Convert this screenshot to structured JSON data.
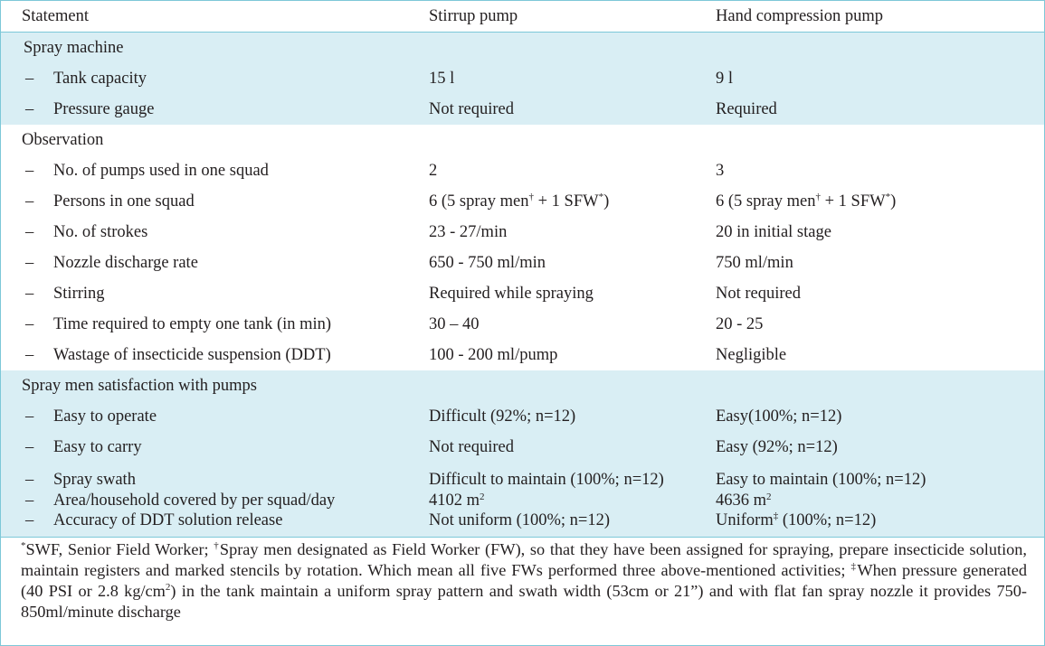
{
  "header": {
    "col1": "Statement",
    "col2": "Stirrup pump",
    "col3": "Hand compression pump"
  },
  "sections": [
    {
      "title": "Spray machine",
      "rows": [
        {
          "dash": "–",
          "label": "Tank capacity",
          "stirrup": "15 l",
          "hand": "9 l"
        },
        {
          "dash": "–",
          "label": "Pressure gauge",
          "stirrup": "Not required",
          "hand": "Required"
        }
      ]
    },
    {
      "title": "Observation",
      "rows": [
        {
          "dash": "–",
          "label": "No. of pumps used in one squad",
          "stirrup": "2",
          "hand": "3"
        },
        {
          "dash": "–",
          "label": "Persons in one squad",
          "stirrup": "6 (5 spray men† + 1 SFW*)",
          "hand": "6 (5 spray men† + 1 SFW*)"
        },
        {
          "dash": "–",
          "label": "No. of strokes",
          "stirrup": "23 - 27/min",
          "hand": "20 in initial stage"
        },
        {
          "dash": "–",
          "label": "Nozzle discharge rate",
          "stirrup": "650 - 750 ml/min",
          "hand": "750 ml/min"
        },
        {
          "dash": "–",
          "label": "Stirring",
          "stirrup": "Required while spraying",
          "hand": "Not required"
        },
        {
          "dash": "–",
          "label": "Time required to empty one tank (in min)",
          "stirrup": "30 – 40",
          "hand": "20 - 25"
        },
        {
          "dash": "–",
          "label": "Wastage of insecticide suspension (DDT)",
          "stirrup": "100 - 200 ml/pump",
          "hand": "Negligible"
        }
      ]
    },
    {
      "title": "Spray men satisfaction with pumps",
      "rows": [
        {
          "dash": "–",
          "label": "Easy to operate",
          "stirrup": "Difficult (92%; n=12)",
          "hand": "Easy(100%; n=12)"
        },
        {
          "dash": "–",
          "label": "Easy to carry",
          "stirrup": "Not required",
          "hand": "Easy (92%; n=12)"
        },
        {
          "dash": "–",
          "label": "Spray swath",
          "stirrup": "Difficult to maintain (100%; n=12)",
          "hand": "Easy to maintain (100%; n=12)"
        },
        {
          "dash": "–",
          "label": "Area/household covered by per squad/day",
          "stirrup": "4102 m",
          "stirrup_sup": "2",
          "hand": "4636 m",
          "hand_sup": "2"
        },
        {
          "dash": "–",
          "label": "Accuracy of DDT solution release",
          "stirrup": "Not uniform (100%; n=12)",
          "hand": "Uniform",
          "hand_sup": "‡",
          "hand_tail": " (100%; n=12)"
        }
      ]
    }
  ],
  "persons_parts": {
    "a": "6 (5 spray men",
    "dagger": "†",
    "b": " + 1 SFW",
    "star": "*",
    "c": ")"
  },
  "footnote": {
    "star": "*",
    "p1": "SWF, Senior Field Worker; ",
    "dagger": "†",
    "p2": "Spray men designated as Field Worker (FW), so that they have been assigned for spraying, prepare insecticide solution, maintain registers and marked stencils by rotation. Which mean all five FWs performed three above-mentioned activities; ",
    "ddagger": "‡",
    "p3": "When pressure generated (40 PSI or 2.8 kg/cm",
    "sq": "2",
    "p4": ") in the tank maintain a uniform spray pattern and swath width (53cm or 21”) and with flat fan spray nozzle it provides 750-850ml/minute discharge"
  },
  "colors": {
    "shade": "#d9eef4",
    "rule": "#7dc8d8",
    "text": "#231f20"
  }
}
